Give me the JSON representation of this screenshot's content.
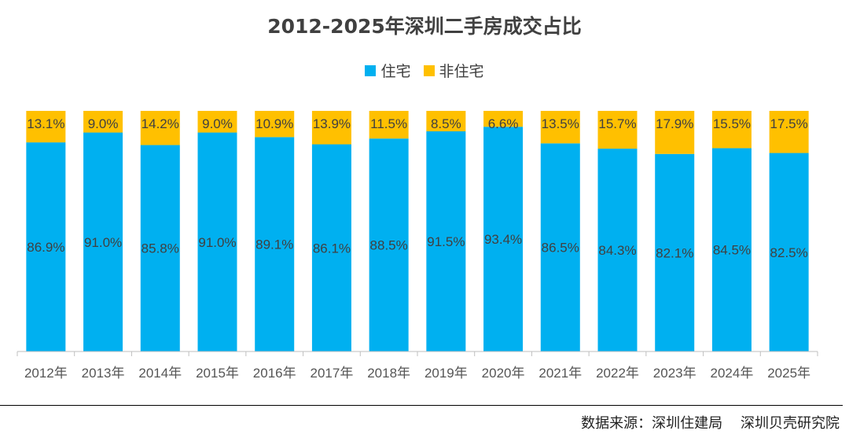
{
  "title": "2012-2025年深圳二手房成交占比",
  "legend": [
    {
      "label": "住宅",
      "color": "#00B0F0"
    },
    {
      "label": "非住宅",
      "color": "#FFC000"
    }
  ],
  "chart_data": {
    "type": "bar",
    "stacked": true,
    "title": "2012-2025年深圳二手房成交占比",
    "categories": [
      "2012年",
      "2013年",
      "2014年",
      "2015年",
      "2016年",
      "2017年",
      "2018年",
      "2019年",
      "2020年",
      "2021年",
      "2022年",
      "2023年",
      "2024年",
      "2025年"
    ],
    "series": [
      {
        "name": "住宅",
        "color": "#00B0F0",
        "values": [
          86.9,
          91.0,
          85.8,
          91.0,
          89.1,
          86.1,
          88.5,
          91.5,
          93.4,
          86.5,
          84.3,
          82.1,
          84.5,
          82.5
        ],
        "labels": [
          "86.9%",
          "91.0%",
          "85.8%",
          "91.0%",
          "89.1%",
          "86.1%",
          "88.5%",
          "91.5%",
          "93.4%",
          "86.5%",
          "84.3%",
          "82.1%",
          "84.5%",
          "82.5%"
        ]
      },
      {
        "name": "非住宅",
        "color": "#FFC000",
        "values": [
          13.1,
          9.0,
          14.2,
          9.0,
          10.9,
          13.9,
          11.5,
          8.5,
          6.6,
          13.5,
          15.7,
          17.9,
          15.5,
          17.5
        ],
        "labels": [
          "13.1%",
          "9.0%",
          "14.2%",
          "9.0%",
          "10.9%",
          "13.9%",
          "11.5%",
          "8.5%",
          "6.6%",
          "13.5%",
          "15.7%",
          "17.9%",
          "15.5%",
          "17.5%"
        ]
      }
    ],
    "ylim": [
      0,
      100
    ],
    "xlabel": "",
    "ylabel": "",
    "grid": false,
    "legend_position": "top-center"
  },
  "source": "数据来源：深圳住建局    深圳贝壳研究院"
}
